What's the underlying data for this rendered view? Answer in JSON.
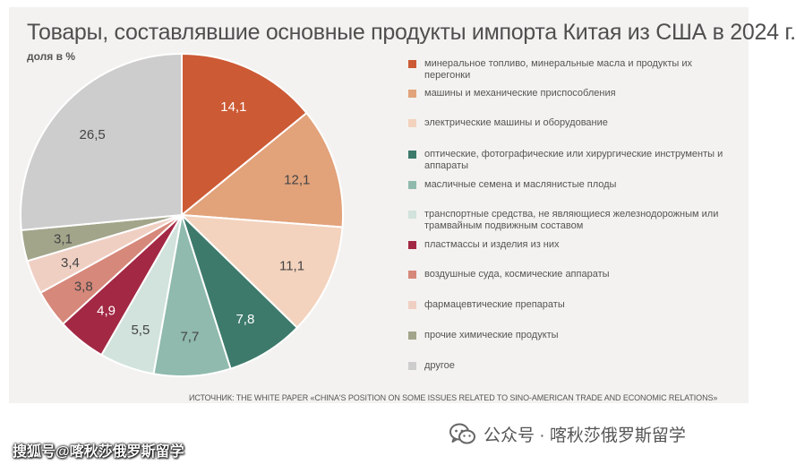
{
  "chart_data": {
    "type": "pie",
    "title": "Товары, составлявшие основные продукты импорта Китая из США в 2024 г.",
    "subtitle": "доля в %",
    "source": "ИСТОЧНИК: THE WHITE PAPER «CHINA'S POSITION ON SOME ISSUES RELATED TO SINO-AMERICAN TRADE AND ECONOMIC RELATIONS»",
    "legend_position": "right",
    "slices": [
      {
        "label": "минеральное топливо, минеральные масла и продукты их перегонки",
        "value": 14.1,
        "value_label": "14,1",
        "color": "#cc5a35"
      },
      {
        "label": "машины и механические приспособления",
        "value": 12.1,
        "value_label": "12,1",
        "color": "#e2a27a"
      },
      {
        "label": "электрические машины и оборудование",
        "value": 11.1,
        "value_label": "11,1",
        "color": "#f3d3be"
      },
      {
        "label": "оптические, фотографические или хирургические инструменты и аппараты",
        "value": 7.8,
        "value_label": "7,8",
        "color": "#3d7a6b"
      },
      {
        "label": "масличные семена и маслянистые плоды",
        "value": 7.7,
        "value_label": "7,7",
        "color": "#8fbaad"
      },
      {
        "label": "транспортные средства, не являющиеся железнодорожным или трамвайным подвижным составом",
        "value": 5.5,
        "value_label": "5,5",
        "color": "#d1e3dc"
      },
      {
        "label": "пластмассы и изделия из них",
        "value": 4.9,
        "value_label": "4,9",
        "color": "#a32844"
      },
      {
        "label": "воздушные суда, космические аппараты",
        "value": 3.8,
        "value_label": "3,8",
        "color": "#d6887a"
      },
      {
        "label": "фармацевтические препараты",
        "value": 3.4,
        "value_label": "3,4",
        "color": "#f0cfc3"
      },
      {
        "label": "прочие химические продукты",
        "value": 3.1,
        "value_label": "3,1",
        "color": "#a2a58a"
      },
      {
        "label": "другое",
        "value": 26.5,
        "value_label": "26,5",
        "color": "#cdcdcd"
      }
    ]
  },
  "watermarks": {
    "left": "搜狐号@喀秋莎俄罗斯留学",
    "right": "公众号 · 喀秋莎俄罗斯留学",
    "right_icon": "wechat-icon"
  }
}
